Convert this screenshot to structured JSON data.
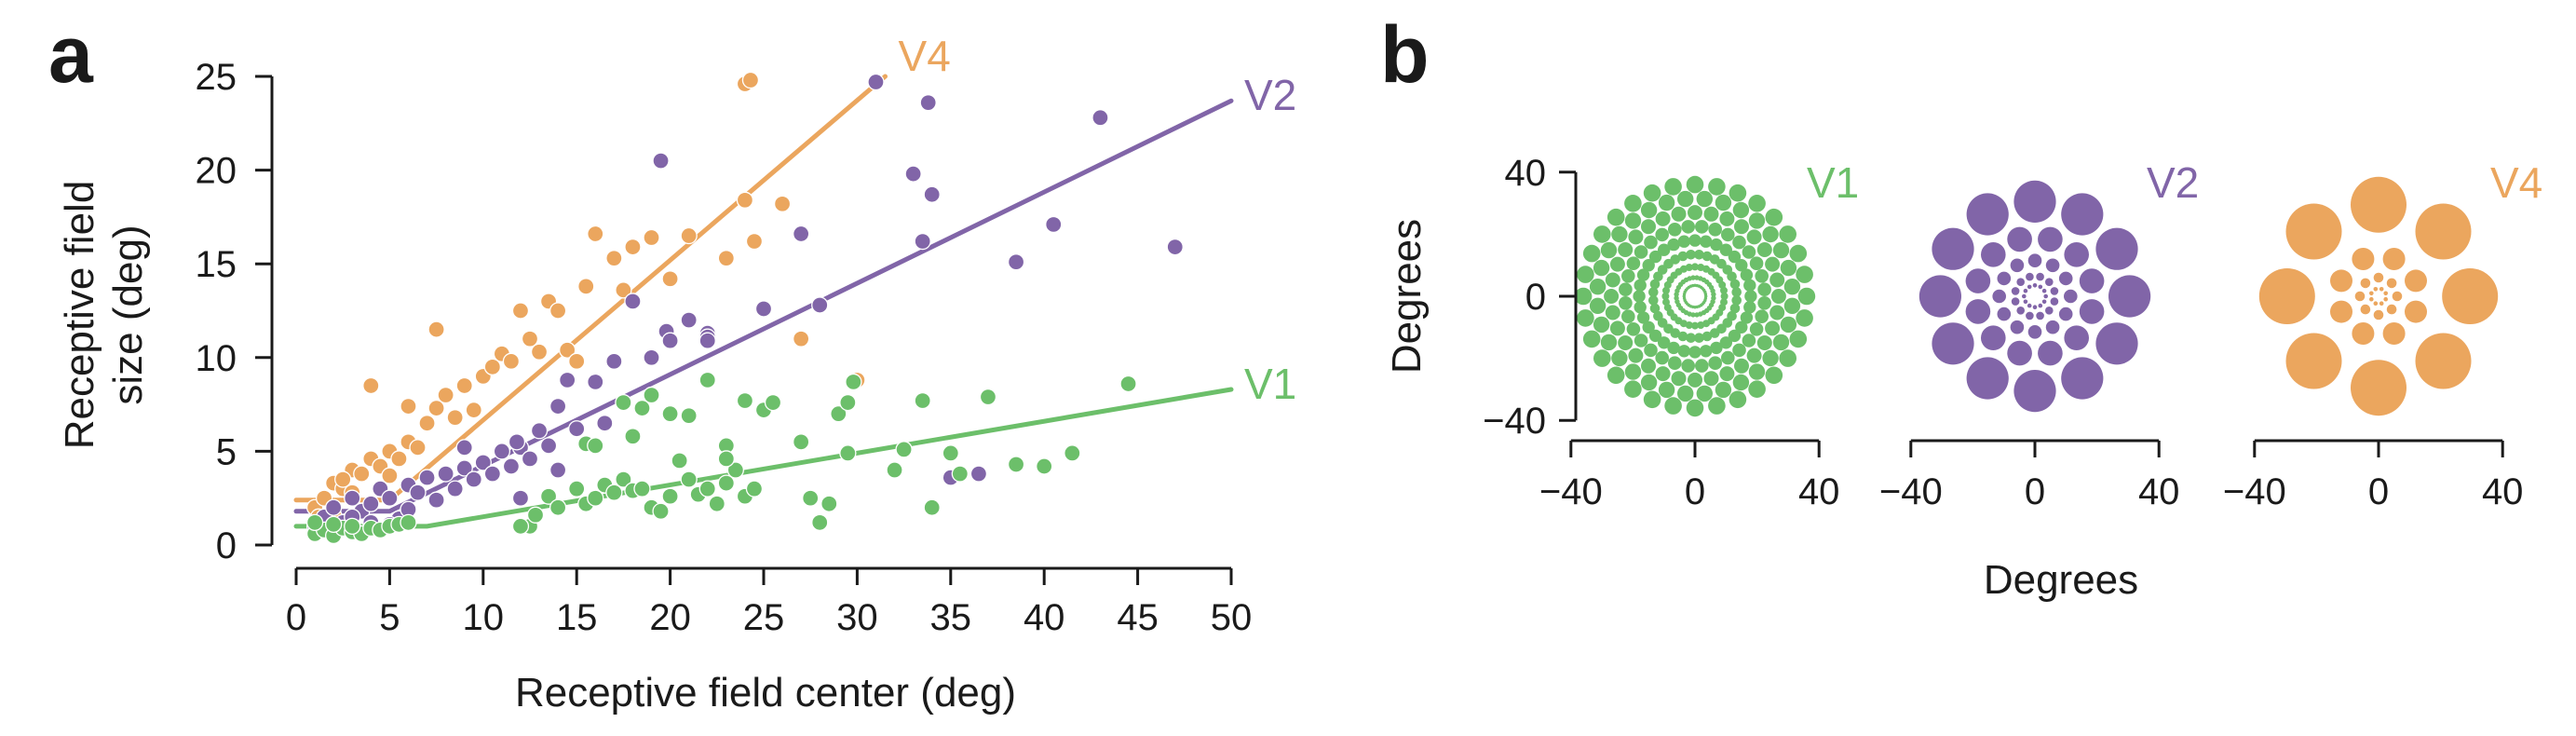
{
  "panel_a": {
    "label": "a"
  },
  "panel_b": {
    "label": "b"
  },
  "colors": {
    "V1": "#6cbf6a",
    "V2": "#8165a8",
    "V4": "#eba65e",
    "axis": "#1a1a1a"
  },
  "chart_data": [
    {
      "type": "scatter",
      "panel": "a",
      "xlabel": "Receptive field center (deg)",
      "ylabel": "Receptive field\nsize (deg)",
      "xlim": [
        0,
        50
      ],
      "ylim": [
        0,
        25
      ],
      "xticks": [
        0,
        5,
        10,
        15,
        20,
        25,
        30,
        35,
        40,
        45,
        50
      ],
      "yticks": [
        0,
        5,
        10,
        15,
        20,
        25
      ],
      "grid": false,
      "legend": "inline labels at line ends",
      "series": [
        {
          "name": "V1",
          "color": "#6cbf6a",
          "fit_line": [
            [
              0,
              1.0
            ],
            [
              7,
              1.0
            ],
            [
              50,
              8.3
            ]
          ],
          "label_pos": [
            50,
            8.3
          ],
          "points": [
            [
              1,
              0.6
            ],
            [
              1.5,
              0.8
            ],
            [
              2,
              0.5
            ],
            [
              2.5,
              0.9
            ],
            [
              3,
              0.7
            ],
            [
              3.5,
              0.6
            ],
            [
              4,
              0.9
            ],
            [
              4.5,
              0.8
            ],
            [
              5,
              1.0
            ],
            [
              2,
              1.1
            ],
            [
              3,
              1.0
            ],
            [
              1,
              1.2
            ],
            [
              5.5,
              1.1
            ],
            [
              6,
              1.2
            ],
            [
              12.5,
              1.0
            ],
            [
              12.8,
              1.6
            ],
            [
              13.5,
              2.6
            ],
            [
              14,
              2.0
            ],
            [
              15,
              3.0
            ],
            [
              15.5,
              2.2
            ],
            [
              16,
              2.5
            ],
            [
              16.5,
              3.2
            ],
            [
              17,
              2.8
            ],
            [
              17.5,
              3.5
            ],
            [
              18,
              2.9
            ],
            [
              18.5,
              3.0
            ],
            [
              19,
              2.0
            ],
            [
              19.5,
              1.8
            ],
            [
              20,
              2.6
            ],
            [
              20.5,
              4.5
            ],
            [
              21,
              3.5
            ],
            [
              21.5,
              2.7
            ],
            [
              22,
              3.0
            ],
            [
              22.5,
              2.2
            ],
            [
              23,
              3.3
            ],
            [
              23.5,
              4.0
            ],
            [
              24,
              2.6
            ],
            [
              24.5,
              3.0
            ],
            [
              15.5,
              5.4
            ],
            [
              16,
              5.3
            ],
            [
              18,
              5.8
            ],
            [
              18.5,
              7.3
            ],
            [
              17.5,
              7.6
            ],
            [
              20,
              7.0
            ],
            [
              21,
              6.9
            ],
            [
              22,
              8.8
            ],
            [
              23,
              5.3
            ],
            [
              24,
              7.7
            ],
            [
              25,
              7.2
            ],
            [
              27,
              5.5
            ],
            [
              27.5,
              2.5
            ],
            [
              28,
              1.2
            ],
            [
              28.5,
              2.2
            ],
            [
              29,
              7.0
            ],
            [
              29.5,
              4.9
            ],
            [
              29.5,
              7.6
            ],
            [
              29.8,
              8.7
            ],
            [
              32,
              4.0
            ],
            [
              32.5,
              5.1
            ],
            [
              33.5,
              7.7
            ],
            [
              34,
              2.0
            ],
            [
              35,
              4.9
            ],
            [
              35.5,
              3.8
            ],
            [
              37,
              7.9
            ],
            [
              38.5,
              4.3
            ],
            [
              40,
              4.2
            ],
            [
              41.5,
              4.9
            ],
            [
              44.5,
              8.6
            ],
            [
              25.5,
              7.6
            ],
            [
              19,
              8.0
            ],
            [
              23,
              4.6
            ],
            [
              12,
              1.0
            ]
          ]
        },
        {
          "name": "V2",
          "color": "#8165a8",
          "fit_line": [
            [
              0,
              1.8
            ],
            [
              5,
              1.8
            ],
            [
              50,
              23.7
            ]
          ],
          "label_pos": [
            50,
            23.7
          ],
          "points": [
            [
              1,
              1.0
            ],
            [
              1.5,
              1.5
            ],
            [
              2,
              2.0
            ],
            [
              2.5,
              1.2
            ],
            [
              3,
              2.5
            ],
            [
              3.5,
              1.8
            ],
            [
              4,
              2.2
            ],
            [
              4.5,
              3.0
            ],
            [
              5,
              2.5
            ],
            [
              5.5,
              1.4
            ],
            [
              6,
              3.2
            ],
            [
              6.5,
              2.8
            ],
            [
              7,
              3.6
            ],
            [
              7.5,
              2.4
            ],
            [
              8,
              3.8
            ],
            [
              8.5,
              3.0
            ],
            [
              9,
              4.1
            ],
            [
              9.5,
              3.5
            ],
            [
              10,
              4.4
            ],
            [
              10.5,
              3.8
            ],
            [
              11,
              5.0
            ],
            [
              11.5,
              4.2
            ],
            [
              12,
              5.2
            ],
            [
              12.5,
              4.6
            ],
            [
              13,
              6.1
            ],
            [
              13.5,
              5.3
            ],
            [
              14,
              7.4
            ],
            [
              14.5,
              8.8
            ],
            [
              15,
              6.2
            ],
            [
              16,
              8.7
            ],
            [
              17,
              9.8
            ],
            [
              18,
              13.0
            ],
            [
              19,
              10.0
            ],
            [
              19.5,
              20.5
            ],
            [
              19.8,
              11.4
            ],
            [
              20,
              10.9
            ],
            [
              21,
              12.0
            ],
            [
              22,
              11.3
            ],
            [
              22,
              11.1
            ],
            [
              22,
              10.9
            ],
            [
              25,
              12.6
            ],
            [
              27,
              16.6
            ],
            [
              28,
              12.8
            ],
            [
              31,
              24.7
            ],
            [
              33,
              19.8
            ],
            [
              33.5,
              16.2
            ],
            [
              33.8,
              23.6
            ],
            [
              34,
              18.7
            ],
            [
              35,
              3.6
            ],
            [
              36.5,
              3.8
            ],
            [
              38.5,
              15.1
            ],
            [
              40.5,
              17.1
            ],
            [
              43,
              22.8
            ],
            [
              47,
              15.9
            ],
            [
              12,
              2.5
            ],
            [
              9,
              5.2
            ],
            [
              11.8,
              5.5
            ],
            [
              16.5,
              6.5
            ],
            [
              14,
              4.0
            ],
            [
              6,
              1.9
            ],
            [
              3,
              1.5
            ],
            [
              4,
              1.2
            ],
            [
              5,
              1.1
            ]
          ]
        },
        {
          "name": "V4",
          "color": "#eba65e",
          "fit_line": [
            [
              0,
              2.4
            ],
            [
              5,
              2.4
            ],
            [
              31.5,
              25.0
            ]
          ],
          "label_pos": [
            31.5,
            25.0
          ],
          "points": [
            [
              1,
              2.0
            ],
            [
              1.5,
              2.5
            ],
            [
              2,
              3.3
            ],
            [
              2.5,
              3.0
            ],
            [
              3,
              4.0
            ],
            [
              3.5,
              3.8
            ],
            [
              4,
              4.6
            ],
            [
              4.5,
              4.2
            ],
            [
              5,
              5.0
            ],
            [
              5.5,
              4.6
            ],
            [
              6,
              5.5
            ],
            [
              6.5,
              5.2
            ],
            [
              7,
              6.5
            ],
            [
              7.5,
              7.3
            ],
            [
              8,
              8.0
            ],
            [
              8.5,
              6.8
            ],
            [
              9,
              8.5
            ],
            [
              9.5,
              7.2
            ],
            [
              10,
              9.0
            ],
            [
              10.5,
              9.5
            ],
            [
              11,
              10.2
            ],
            [
              11.5,
              9.8
            ],
            [
              12,
              12.5
            ],
            [
              12.5,
              11.0
            ],
            [
              13,
              10.3
            ],
            [
              13.5,
              13.0
            ],
            [
              14,
              12.5
            ],
            [
              14.5,
              10.4
            ],
            [
              15,
              9.8
            ],
            [
              15.5,
              13.8
            ],
            [
              16,
              16.6
            ],
            [
              17,
              15.3
            ],
            [
              17.5,
              13.6
            ],
            [
              18,
              15.9
            ],
            [
              19,
              16.4
            ],
            [
              20,
              14.2
            ],
            [
              21,
              16.5
            ],
            [
              23,
              15.3
            ],
            [
              24,
              18.4
            ],
            [
              24.5,
              16.2
            ],
            [
              24,
              24.6
            ],
            [
              24.3,
              24.8
            ],
            [
              26,
              18.2
            ],
            [
              27,
              11.0
            ],
            [
              30,
              8.8
            ],
            [
              7.5,
              11.5
            ],
            [
              4,
              8.5
            ],
            [
              6,
              7.4
            ],
            [
              2,
              1.6
            ],
            [
              3,
              2.8
            ],
            [
              1.2,
              1.5
            ],
            [
              2.5,
              3.5
            ],
            [
              5,
              3.7
            ]
          ]
        }
      ]
    },
    {
      "type": "scatter",
      "panel": "b",
      "title": "V1",
      "ylabel": "Degrees",
      "xlabel": "Degrees",
      "xlim": [
        -40,
        40
      ],
      "ylim": [
        -40,
        40
      ],
      "xticks": [
        -40,
        0,
        40
      ],
      "yticks": [
        -40,
        0,
        40
      ],
      "color": "#6cbf6a",
      "rings": [
        {
          "radius": 36.0,
          "count": 32,
          "size": 2.8
        },
        {
          "radius": 31.5,
          "count": 32,
          "size": 2.6
        },
        {
          "radius": 27.0,
          "count": 32,
          "size": 2.4
        },
        {
          "radius": 22.5,
          "count": 32,
          "size": 2.2
        },
        {
          "radius": 18.0,
          "count": 32,
          "size": 2.0
        },
        {
          "radius": 13.5,
          "count": 32,
          "size": 1.6
        },
        {
          "radius": 9.5,
          "count": 32,
          "size": 1.2
        },
        {
          "radius": 6.0,
          "count": 32,
          "size": 0.8
        },
        {
          "radius": 3.5,
          "count": 32,
          "size": 0.5
        }
      ]
    },
    {
      "type": "scatter",
      "panel": "b",
      "title": "V2",
      "xlim": [
        -40,
        40
      ],
      "ylim": [
        -40,
        40
      ],
      "xticks": [
        -40,
        0,
        40
      ],
      "color": "#8165a8",
      "rings": [
        {
          "radius": 30.5,
          "count": 12,
          "size": 6.8
        },
        {
          "radius": 19.0,
          "count": 12,
          "size": 4.0
        },
        {
          "radius": 11.5,
          "count": 12,
          "size": 2.2
        },
        {
          "radius": 6.5,
          "count": 12,
          "size": 1.3
        },
        {
          "radius": 3.5,
          "count": 12,
          "size": 0.7
        }
      ]
    },
    {
      "type": "scatter",
      "panel": "b",
      "title": "V4",
      "xlim": [
        -40,
        40
      ],
      "ylim": [
        -40,
        40
      ],
      "xticks": [
        -40,
        0,
        40
      ],
      "color": "#eba65e",
      "rings": [
        {
          "radius": 29.5,
          "count": 8,
          "size": 9.0
        },
        {
          "radius": 13.0,
          "count": 8,
          "size": 3.6
        },
        {
          "radius": 6.0,
          "count": 8,
          "size": 1.6
        },
        {
          "radius": 2.5,
          "count": 8,
          "size": 0.7
        }
      ]
    }
  ]
}
